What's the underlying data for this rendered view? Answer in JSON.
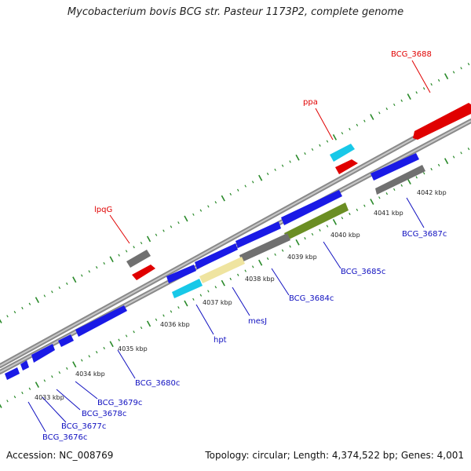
{
  "title": "Mycobacterium bovis BCG str. Pasteur 1173P2, complete genome",
  "footer": {
    "accession": "Accession: NC_008769",
    "summary": "Topology: circular; Length: 4,374,522 bp; Genes: 4,001"
  },
  "colors": {
    "forward_gene": "#1a1ae6",
    "rna_gene": "#e00000",
    "cyan_gene": "#18c8e8",
    "grey_feature": "#707070",
    "olive_feature": "#6b8e23",
    "yellow_feature": "#efe4a0",
    "backbone": "#a8a8a8",
    "tick": "#2a8a2a"
  },
  "kbp_labels": [
    "4033 kbp",
    "4034 kbp",
    "4035 kbp",
    "4036 kbp",
    "4037 kbp",
    "4038 kbp",
    "4039 kbp",
    "4040 kbp",
    "4041 kbp",
    "4042 kbp"
  ],
  "upper_labels": [
    "lpqG",
    "ppa",
    "BCG_3688"
  ],
  "lower_labels": [
    "BCG_3676c",
    "BCG_3677c",
    "BCG_3678c",
    "BCG_3679c",
    "BCG_3680c",
    "hpt",
    "mesJ",
    "BCG_3684c",
    "BCG_3685c",
    "BCG_3687c"
  ]
}
